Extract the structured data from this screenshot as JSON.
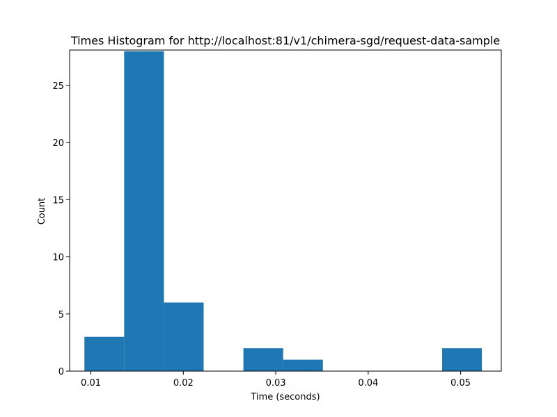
{
  "chart_data": {
    "type": "bar",
    "title": "Times Histogram for http://localhost:81/v1/chimera-sgd/request-data-sample",
    "xlabel": "Time (seconds)",
    "ylabel": "Count",
    "xlim": [
      0.0077,
      0.0544
    ],
    "ylim": [
      0,
      28.1
    ],
    "grid": false,
    "bar_color": "#1f77b4",
    "bins": [
      {
        "start": 0.0093,
        "end": 0.0136,
        "count": 3
      },
      {
        "start": 0.0136,
        "end": 0.0179,
        "count": 28
      },
      {
        "start": 0.0179,
        "end": 0.0222,
        "count": 6
      },
      {
        "start": 0.0222,
        "end": 0.0265,
        "count": 0
      },
      {
        "start": 0.0265,
        "end": 0.0308,
        "count": 2
      },
      {
        "start": 0.0308,
        "end": 0.0351,
        "count": 1
      },
      {
        "start": 0.0351,
        "end": 0.0394,
        "count": 0
      },
      {
        "start": 0.0394,
        "end": 0.0437,
        "count": 0
      },
      {
        "start": 0.0437,
        "end": 0.048,
        "count": 0
      },
      {
        "start": 0.048,
        "end": 0.0523,
        "count": 2
      }
    ],
    "xticks": [
      {
        "value": 0.01,
        "label": "0.01"
      },
      {
        "value": 0.02,
        "label": "0.02"
      },
      {
        "value": 0.03,
        "label": "0.03"
      },
      {
        "value": 0.04,
        "label": "0.04"
      },
      {
        "value": 0.05,
        "label": "0.05"
      }
    ],
    "yticks": [
      {
        "value": 0,
        "label": "0"
      },
      {
        "value": 5,
        "label": "5"
      },
      {
        "value": 10,
        "label": "10"
      },
      {
        "value": 15,
        "label": "15"
      },
      {
        "value": 20,
        "label": "20"
      },
      {
        "value": 25,
        "label": "25"
      }
    ]
  }
}
